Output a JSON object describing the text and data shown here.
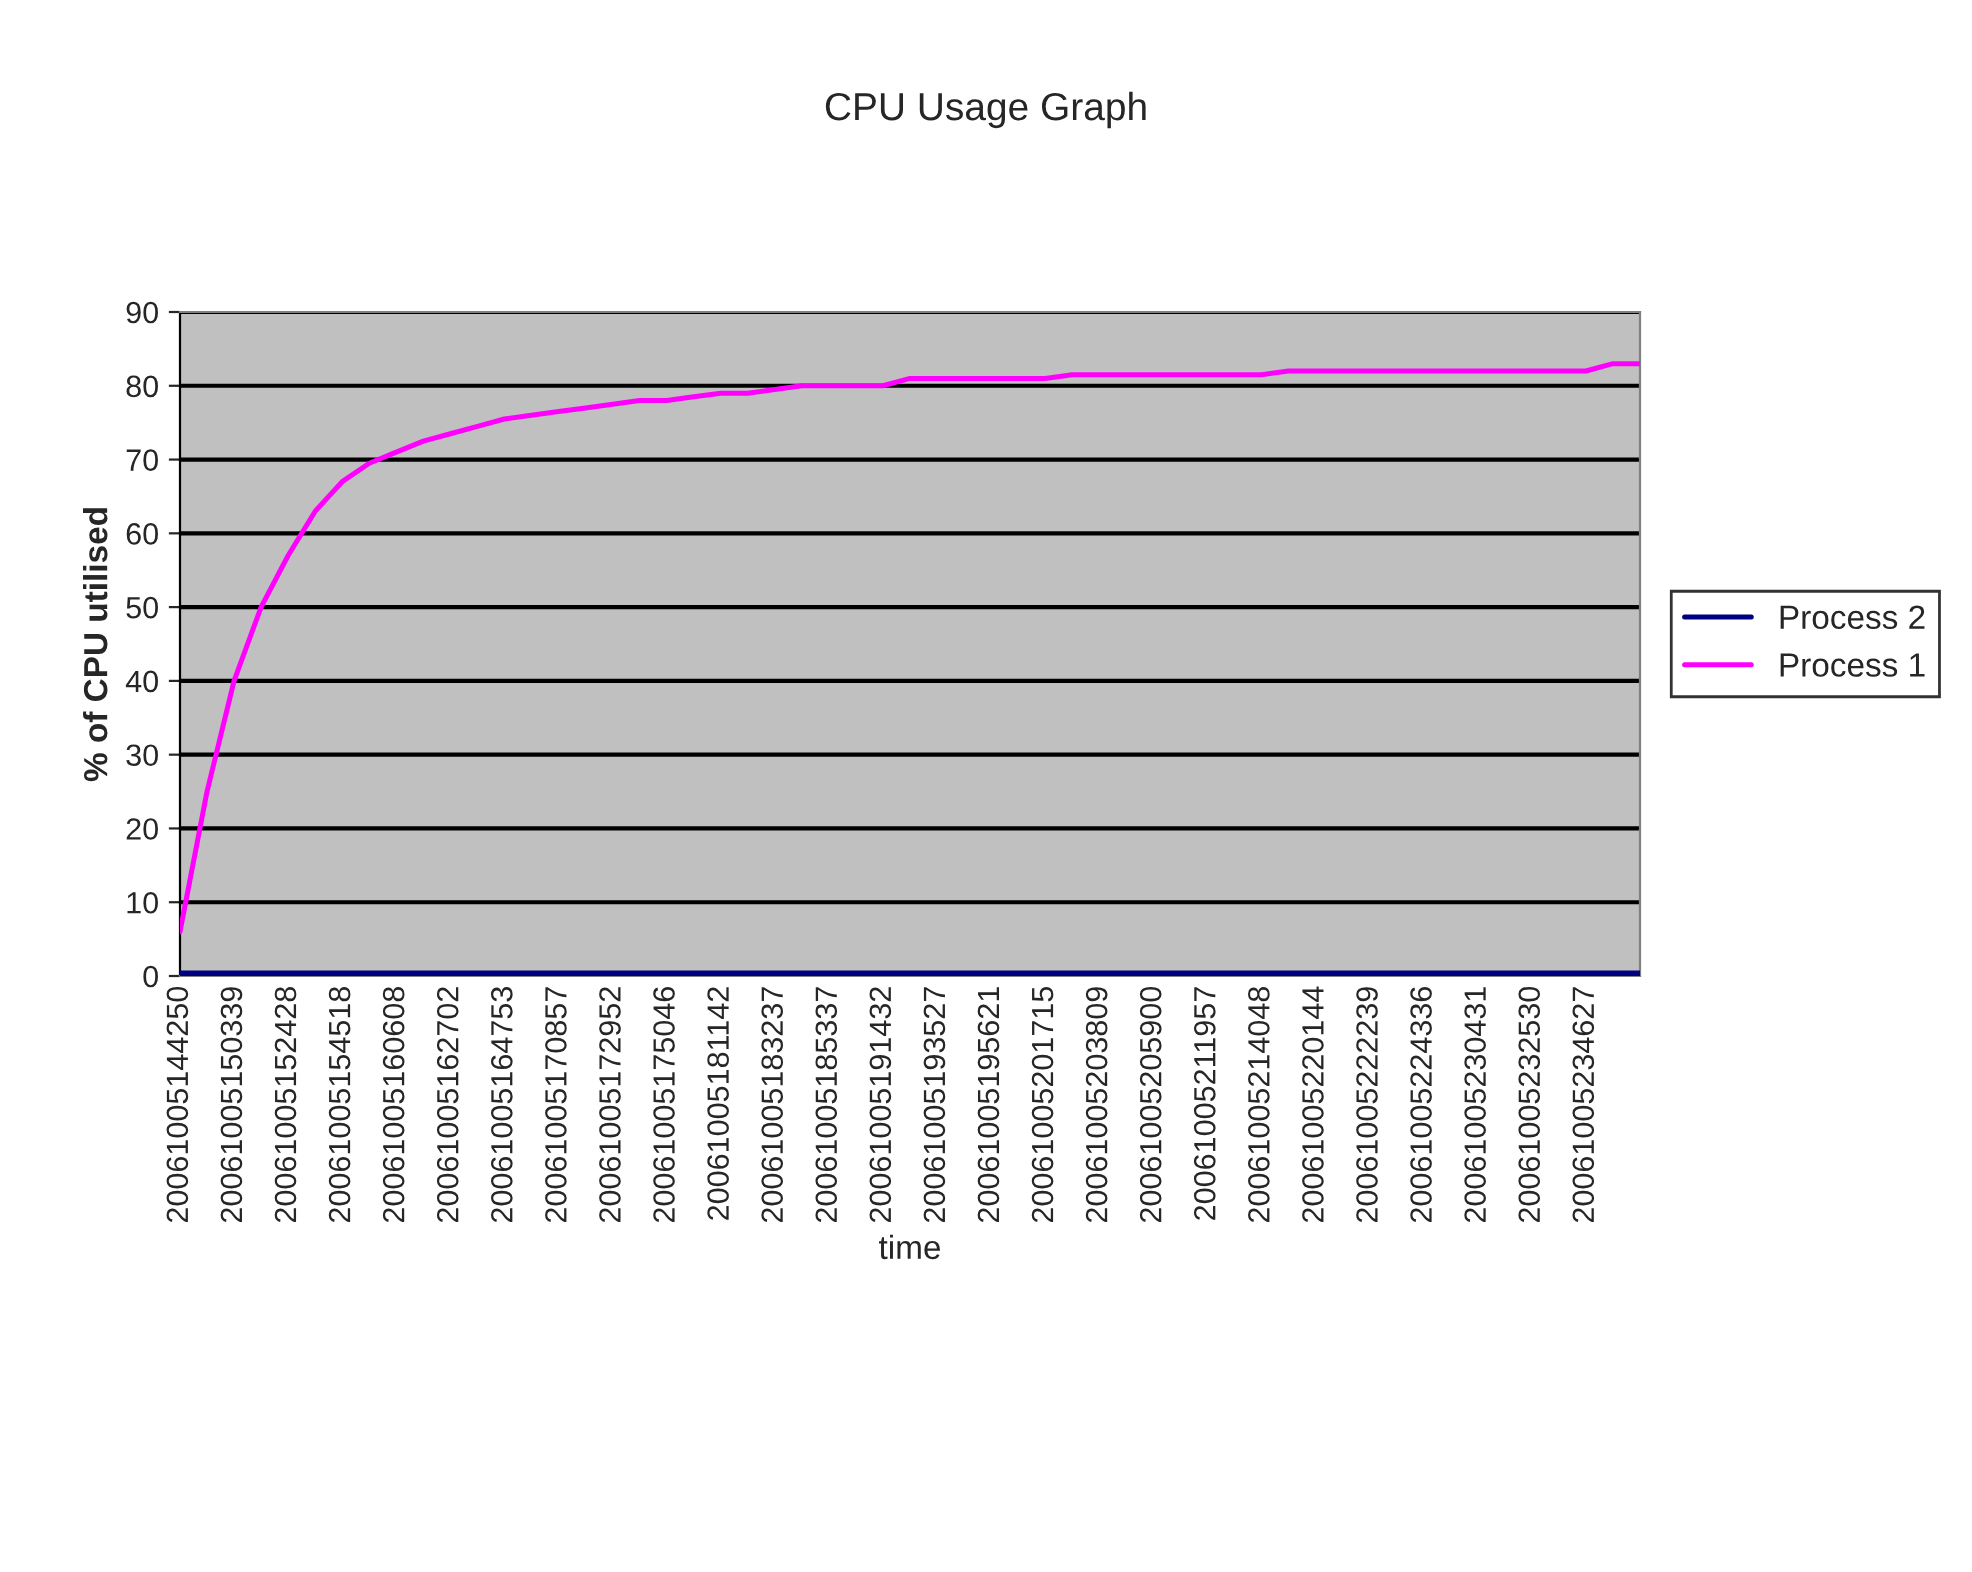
{
  "chart_data": {
    "type": "line",
    "title": "CPU Usage Graph",
    "xlabel": "time",
    "ylabel": "% of CPU utilised",
    "categories": [
      "20061005144250",
      null,
      "20061005150339",
      null,
      "20061005152428",
      null,
      "20061005154518",
      null,
      "20061005160608",
      null,
      "20061005162702",
      null,
      "20061005164753",
      null,
      "20061005170857",
      null,
      "20061005172952",
      null,
      "20061005175046",
      null,
      "20061005181142",
      null,
      "20061005183237",
      null,
      "20061005185337",
      null,
      "20061005191432",
      null,
      "20061005193527",
      null,
      "20061005195621",
      null,
      "20061005201715",
      null,
      "20061005203809",
      null,
      "20061005205900",
      null,
      "20061005211957",
      null,
      "20061005214048",
      null,
      "20061005220144",
      null,
      "20061005222239",
      null,
      "20061005224336",
      null,
      "20061005230431",
      null,
      "20061005232530",
      null,
      "20061005234627",
      null,
      null
    ],
    "series": [
      {
        "name": "Process 2",
        "color": "#000080",
        "values": [
          0,
          0,
          0,
          0,
          0,
          0,
          0,
          0,
          0,
          0,
          0,
          0,
          0,
          0,
          0,
          0,
          0,
          0,
          0,
          0,
          0,
          0,
          0,
          0,
          0,
          0,
          0,
          0,
          0,
          0,
          0,
          0,
          0,
          0,
          0,
          0,
          0,
          0,
          0,
          0,
          0,
          0,
          0,
          0,
          0,
          0,
          0,
          0,
          0,
          0,
          0,
          0,
          0,
          0,
          0
        ]
      },
      {
        "name": "Process 1",
        "color": "#ff00ff",
        "values": [
          6,
          25,
          40,
          50,
          57,
          63,
          67,
          69.5,
          71,
          72.5,
          73.5,
          74.5,
          75.5,
          76,
          76.5,
          77,
          77.5,
          78,
          78,
          78.5,
          79,
          79,
          79.5,
          80,
          80,
          80,
          80,
          81,
          81,
          81,
          81,
          81,
          81,
          81.5,
          81.5,
          81.5,
          81.5,
          81.5,
          81.5,
          81.5,
          81.5,
          82,
          82,
          82,
          82,
          82,
          82,
          82,
          82,
          82,
          82,
          82,
          82,
          83,
          83
        ]
      }
    ],
    "ylim": [
      0,
      90
    ],
    "yticks": [
      0,
      10,
      20,
      30,
      40,
      50,
      60,
      70,
      80,
      90
    ],
    "grid": "y",
    "legend": "right",
    "marker": "none",
    "line_style": "solid"
  }
}
